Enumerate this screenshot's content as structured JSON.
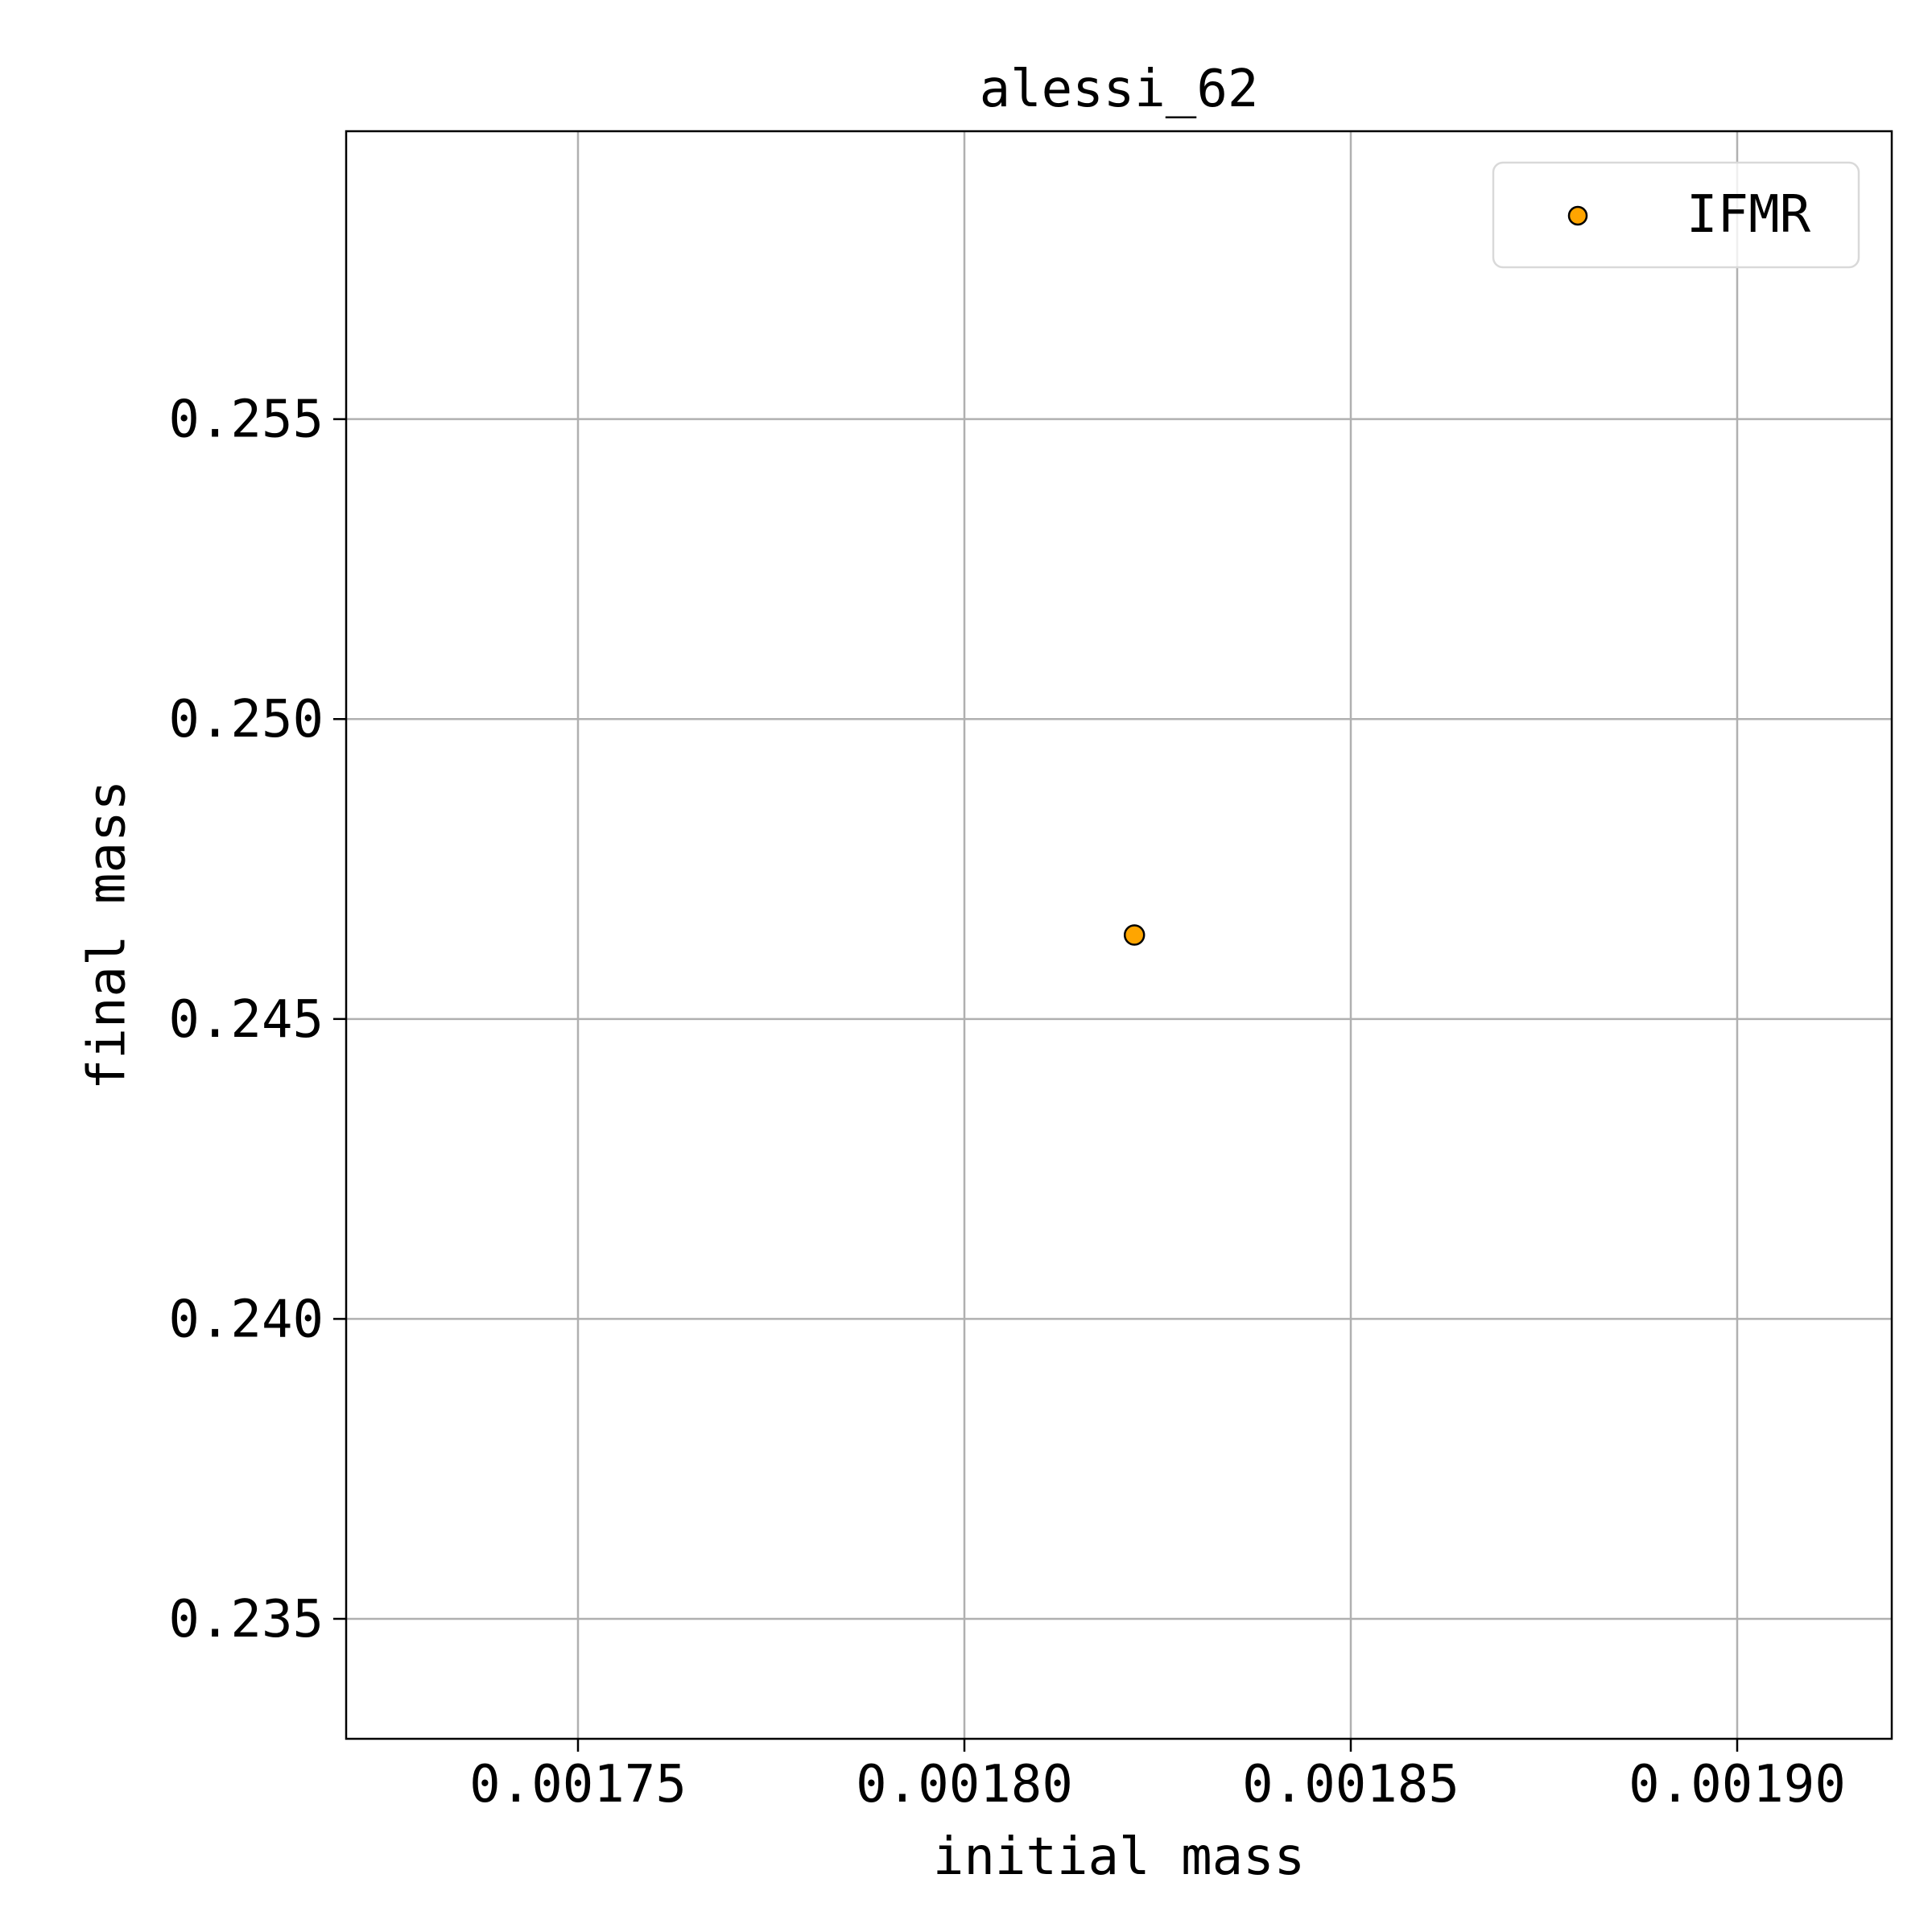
{
  "chart_data": {
    "type": "scatter",
    "title": "alessi_62",
    "xlabel": "initial mass",
    "ylabel": "final mass",
    "xlim": [
      0.00172,
      0.00192
    ],
    "ylim": [
      0.233,
      0.2598
    ],
    "xticks": [
      0.00175,
      0.0018,
      0.00185,
      0.0019
    ],
    "xtick_labels": [
      "0.00175",
      "0.00180",
      "0.00185",
      "0.00190"
    ],
    "yticks": [
      0.235,
      0.24,
      0.245,
      0.25,
      0.255
    ],
    "ytick_labels": [
      "0.235",
      "0.240",
      "0.245",
      "0.250",
      "0.255"
    ],
    "grid": true,
    "legend_position": "top-right",
    "series": [
      {
        "name": "IFMR",
        "color": "#FFA500",
        "edge_color": "#000000",
        "marker": "circle",
        "points": [
          {
            "x": 0.001822,
            "y": 0.2464
          }
        ]
      }
    ]
  }
}
